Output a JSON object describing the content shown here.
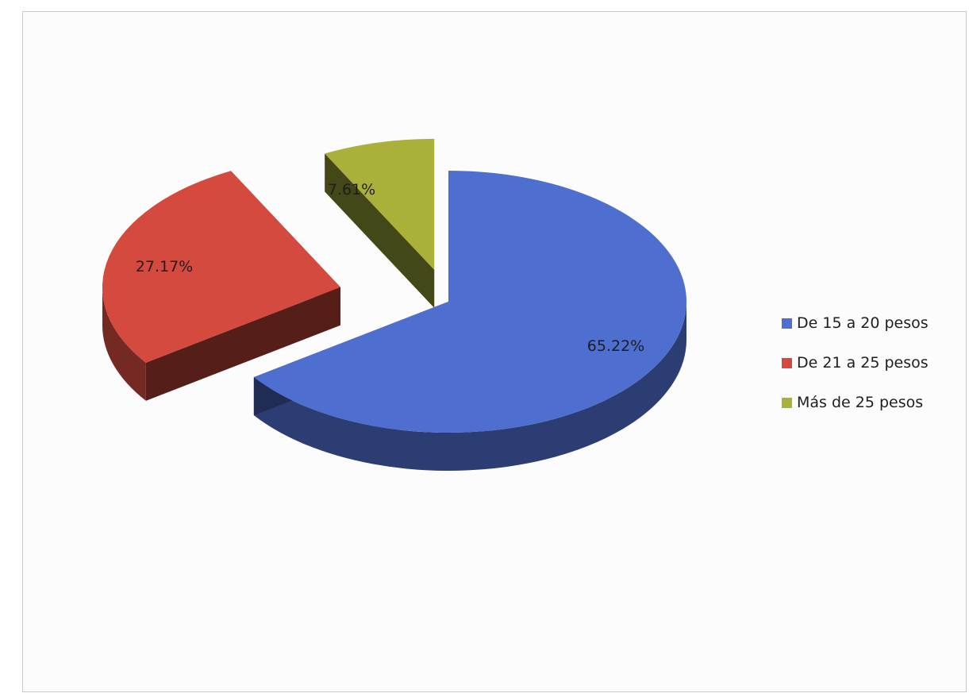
{
  "chart_data": {
    "type": "pie",
    "title": "",
    "categories": [
      "De 15 a 20 pesos",
      "De 21 a 25 pesos",
      "Más de 25 pesos"
    ],
    "values": [
      65.22,
      27.17,
      7.61
    ],
    "labels": [
      "65.22%",
      "27.17%",
      "7.61%"
    ],
    "colors": [
      "#4f6fd0",
      "#d44a3f",
      "#aab13a"
    ],
    "exploded": true,
    "three_d": true,
    "legend_position": "right"
  }
}
